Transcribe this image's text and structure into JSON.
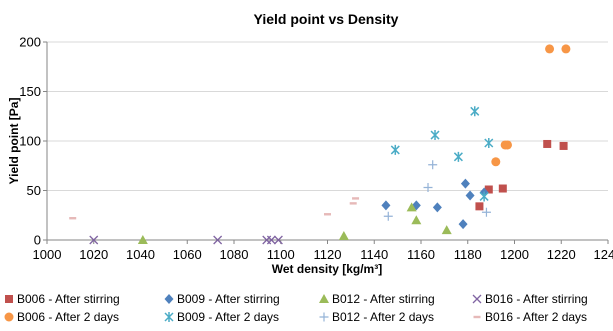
{
  "chart_data": {
    "type": "scatter",
    "title": "Yield point vs Density",
    "xlabel": "Wet density [kg/m³]",
    "ylabel": "Yield point [Pa]",
    "xlim": [
      1000,
      1240
    ],
    "ylim": [
      0,
      200
    ],
    "xticks": [
      "1000",
      "1020",
      "1040",
      "1060",
      "1080",
      "1100",
      "1120",
      "1140",
      "1160",
      "1180",
      "1200",
      "1220",
      "1240"
    ],
    "yticks": [
      "0",
      "50",
      "100",
      "150",
      "200"
    ],
    "grid": "horizontal",
    "legend_position": "bottom",
    "series": [
      {
        "name": "B006 - After stirring",
        "marker": "square",
        "color": "#c0504d",
        "points": [
          [
            1185,
            34
          ],
          [
            1189,
            51
          ],
          [
            1195,
            52
          ],
          [
            1214,
            97
          ],
          [
            1221,
            95
          ]
        ]
      },
      {
        "name": "B009 - After stirring",
        "marker": "diamond",
        "color": "#4f81bd",
        "points": [
          [
            1145,
            35
          ],
          [
            1158,
            35
          ],
          [
            1167,
            33
          ],
          [
            1179,
            57
          ],
          [
            1181,
            45
          ],
          [
            1187,
            48
          ],
          [
            1178,
            16
          ]
        ]
      },
      {
        "name": "B012 - After stirring",
        "marker": "triangle",
        "color": "#9bbb59",
        "points": [
          [
            1041,
            0
          ],
          [
            1127,
            4
          ],
          [
            1156,
            33
          ],
          [
            1158,
            20
          ],
          [
            1171,
            10
          ]
        ]
      },
      {
        "name": "B016 - After stirring",
        "marker": "x",
        "color": "#8064a2",
        "points": [
          [
            1020,
            0
          ],
          [
            1073,
            0
          ],
          [
            1094,
            0
          ],
          [
            1096,
            0
          ],
          [
            1099,
            0
          ]
        ]
      },
      {
        "name": "B006 - After 2 days",
        "marker": "circle",
        "color": "#f79646",
        "points": [
          [
            1192,
            79
          ],
          [
            1196,
            96
          ],
          [
            1197,
            96
          ],
          [
            1215,
            193
          ],
          [
            1222,
            193
          ]
        ]
      },
      {
        "name": "B009 - After 2 days",
        "marker": "asterisk",
        "color": "#4bacc6",
        "points": [
          [
            1149,
            91
          ],
          [
            1166,
            106
          ],
          [
            1183,
            130
          ],
          [
            1176,
            84
          ],
          [
            1189,
            98
          ],
          [
            1187,
            44
          ]
        ]
      },
      {
        "name": "B012 - After 2 days",
        "marker": "plus",
        "color": "#95b3d7",
        "points": [
          [
            1146,
            24
          ],
          [
            1163,
            53
          ],
          [
            1165,
            76
          ],
          [
            1188,
            28
          ]
        ]
      },
      {
        "name": "B016 - After 2 days",
        "marker": "dash",
        "color": "#e6b9b8",
        "points": [
          [
            1011,
            22
          ],
          [
            1120,
            26
          ],
          [
            1131,
            37
          ],
          [
            1132,
            42
          ]
        ]
      }
    ]
  }
}
